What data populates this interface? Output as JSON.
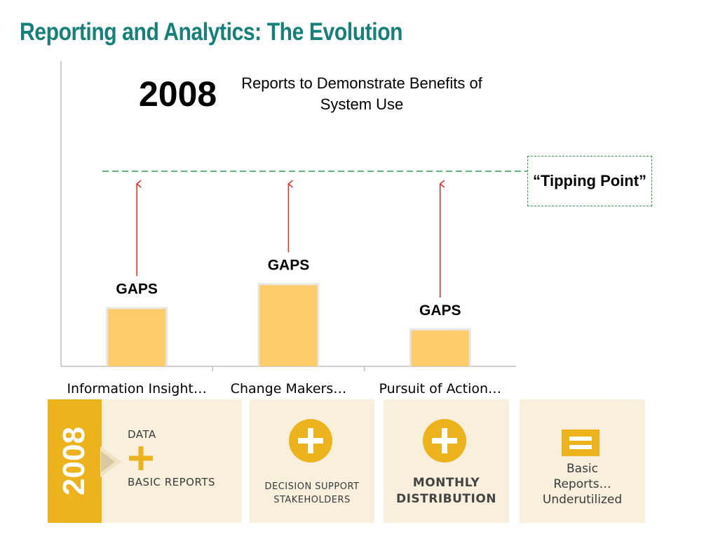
{
  "title": "Reporting and Analytics: The Evolution",
  "year": "2008",
  "subtitle": "Reports to Demonstrate Benefits of System Use",
  "tipping_point": "“Tipping Point”",
  "chart_data": {
    "type": "bar",
    "categories": [
      "Information Insight…",
      "Change Makers…",
      "Pursuit of Action…"
    ],
    "values": [
      2.4,
      3.4,
      1.5
    ],
    "bar_labels": [
      "GAPS",
      "GAPS",
      "GAPS"
    ],
    "threshold_label": "“Tipping Point”",
    "title": "Reports to Demonstrate Benefits of System Use",
    "xlabel": "",
    "ylabel": "",
    "grid": false,
    "colors": {
      "bar": "#fccb6a",
      "bar_edge": "#e9e5df",
      "arrow": "#e52a25",
      "threshold": "#2e9e54"
    }
  },
  "panels": {
    "year": "2008",
    "data_label": "DATA",
    "basic_reports_label": "BASIC REPORTS",
    "decision_support": [
      "DECISION SUPPORT",
      "STAKEHOLDERS"
    ],
    "monthly": [
      "MONTHLY",
      "DISTRIBUTION"
    ],
    "result": [
      "Basic",
      "Reports…",
      "Underutilized"
    ]
  },
  "colors": {
    "title": "#15807a",
    "accent": "#ecb31c",
    "panel_bg": "#f8f0dc"
  },
  "icons": [
    "plus-icon",
    "plus-circle-icon",
    "equals-icon",
    "triangle-arrow-icon"
  ]
}
